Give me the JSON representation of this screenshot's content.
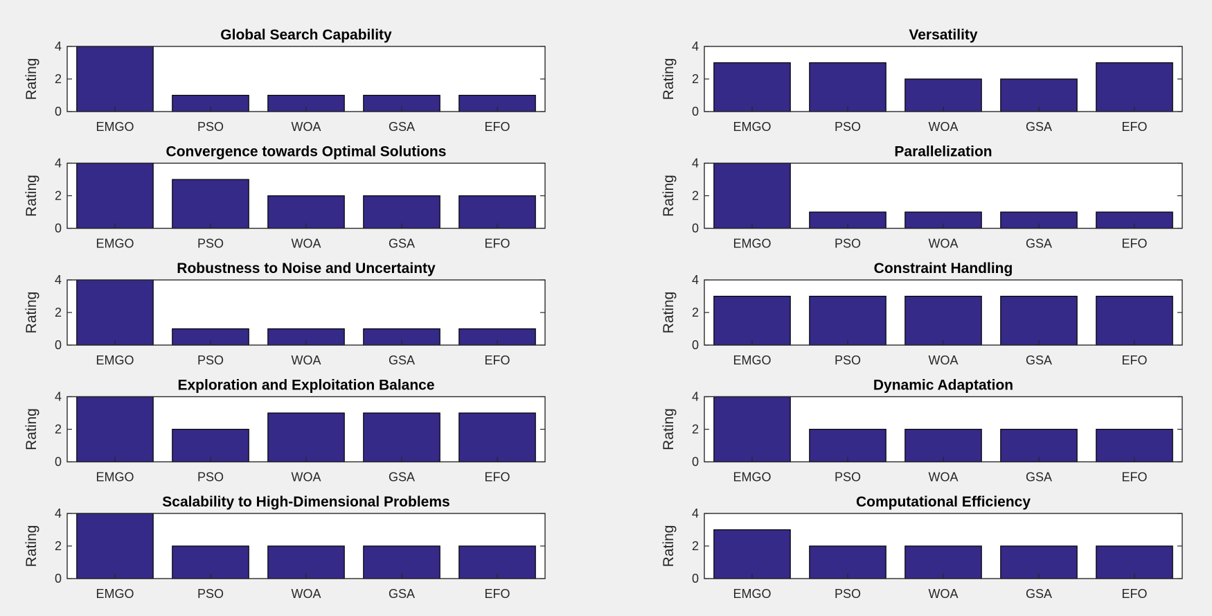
{
  "colors": {
    "figure_background": "#f0f0f0",
    "axes_background": "#ffffff",
    "bar_fill": "#352a87",
    "bar_edge": "#000000",
    "axis_color": "#262626"
  },
  "chart_data": [
    {
      "type": "bar",
      "title": "Global Search Capability",
      "xlabel": "",
      "ylabel": "Rating",
      "categories": [
        "EMGO",
        "PSO",
        "WOA",
        "GSA",
        "EFO"
      ],
      "values": [
        4,
        1,
        1,
        1,
        1
      ],
      "ylim": [
        0,
        4
      ],
      "yticks": [
        0,
        2,
        4
      ],
      "grid": false
    },
    {
      "type": "bar",
      "title": "Versatility",
      "xlabel": "",
      "ylabel": "Rating",
      "categories": [
        "EMGO",
        "PSO",
        "WOA",
        "GSA",
        "EFO"
      ],
      "values": [
        3,
        3,
        2,
        2,
        3
      ],
      "ylim": [
        0,
        4
      ],
      "yticks": [
        0,
        2,
        4
      ],
      "grid": false
    },
    {
      "type": "bar",
      "title": "Convergence towards Optimal Solutions",
      "xlabel": "",
      "ylabel": "Rating",
      "categories": [
        "EMGO",
        "PSO",
        "WOA",
        "GSA",
        "EFO"
      ],
      "values": [
        4,
        3,
        2,
        2,
        2
      ],
      "ylim": [
        0,
        4
      ],
      "yticks": [
        0,
        2,
        4
      ],
      "grid": false
    },
    {
      "type": "bar",
      "title": "Parallelization",
      "xlabel": "",
      "ylabel": "Rating",
      "categories": [
        "EMGO",
        "PSO",
        "WOA",
        "GSA",
        "EFO"
      ],
      "values": [
        4,
        1,
        1,
        1,
        1
      ],
      "ylim": [
        0,
        4
      ],
      "yticks": [
        0,
        2,
        4
      ],
      "grid": false
    },
    {
      "type": "bar",
      "title": "Robustness to Noise and Uncertainty",
      "xlabel": "",
      "ylabel": "Rating",
      "categories": [
        "EMGO",
        "PSO",
        "WOA",
        "GSA",
        "EFO"
      ],
      "values": [
        4,
        1,
        1,
        1,
        1
      ],
      "ylim": [
        0,
        4
      ],
      "yticks": [
        0,
        2,
        4
      ],
      "grid": false
    },
    {
      "type": "bar",
      "title": "Constraint Handling",
      "xlabel": "",
      "ylabel": "Rating",
      "categories": [
        "EMGO",
        "PSO",
        "WOA",
        "GSA",
        "EFO"
      ],
      "values": [
        3,
        3,
        3,
        3,
        3
      ],
      "ylim": [
        0,
        4
      ],
      "yticks": [
        0,
        2,
        4
      ],
      "grid": false
    },
    {
      "type": "bar",
      "title": "Exploration and Exploitation Balance",
      "xlabel": "",
      "ylabel": "Rating",
      "categories": [
        "EMGO",
        "PSO",
        "WOA",
        "GSA",
        "EFO"
      ],
      "values": [
        4,
        2,
        3,
        3,
        3
      ],
      "ylim": [
        0,
        4
      ],
      "yticks": [
        0,
        2,
        4
      ],
      "grid": false
    },
    {
      "type": "bar",
      "title": "Dynamic Adaptation",
      "xlabel": "",
      "ylabel": "Rating",
      "categories": [
        "EMGO",
        "PSO",
        "WOA",
        "GSA",
        "EFO"
      ],
      "values": [
        4,
        2,
        2,
        2,
        2
      ],
      "ylim": [
        0,
        4
      ],
      "yticks": [
        0,
        2,
        4
      ],
      "grid": false
    },
    {
      "type": "bar",
      "title": "Scalability to High-Dimensional Problems",
      "xlabel": "",
      "ylabel": "Rating",
      "categories": [
        "EMGO",
        "PSO",
        "WOA",
        "GSA",
        "EFO"
      ],
      "values": [
        4,
        2,
        2,
        2,
        2
      ],
      "ylim": [
        0,
        4
      ],
      "yticks": [
        0,
        2,
        4
      ],
      "grid": false
    },
    {
      "type": "bar",
      "title": "Computational Efficiency",
      "xlabel": "",
      "ylabel": "Rating",
      "categories": [
        "EMGO",
        "PSO",
        "WOA",
        "GSA",
        "EFO"
      ],
      "values": [
        3,
        2,
        2,
        2,
        2
      ],
      "ylim": [
        0,
        4
      ],
      "yticks": [
        0,
        2,
        4
      ],
      "grid": false
    }
  ]
}
